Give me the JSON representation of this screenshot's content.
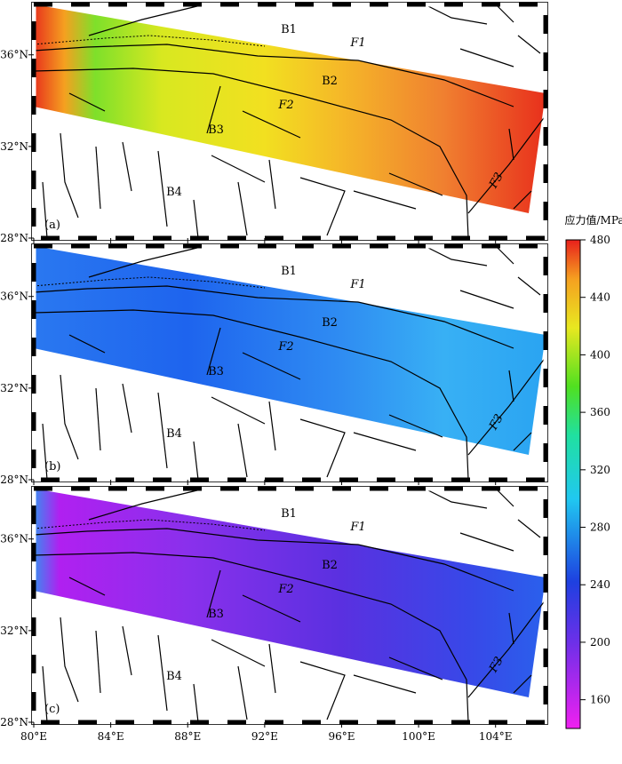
{
  "axes": {
    "xlim": [
      80,
      106.6
    ],
    "ylim": [
      28,
      38.2
    ],
    "xticks": [
      {
        "value": 80,
        "label": "80°E"
      },
      {
        "value": 84,
        "label": "84°E"
      },
      {
        "value": 88,
        "label": "88°E"
      },
      {
        "value": 92,
        "label": "92°E"
      },
      {
        "value": 96,
        "label": "96°E"
      },
      {
        "value": 100,
        "label": "100°E"
      },
      {
        "value": 104,
        "label": "104°E"
      }
    ],
    "yticks": [
      {
        "value": 28,
        "label": "28°N"
      },
      {
        "value": 32,
        "label": "32°N"
      },
      {
        "value": 36,
        "label": "36°N"
      }
    ]
  },
  "panels": [
    {
      "label": "(a)"
    },
    {
      "label": "(b)"
    },
    {
      "label": "(c)"
    }
  ],
  "map_labels": [
    "B1",
    "F1",
    "B2",
    "F2",
    "B3",
    "B4",
    "F3"
  ],
  "colorbar": {
    "title": "应力值/MPa",
    "range": [
      140,
      480
    ],
    "ticks": [
      160,
      200,
      240,
      280,
      320,
      360,
      400,
      440,
      480
    ]
  }
}
